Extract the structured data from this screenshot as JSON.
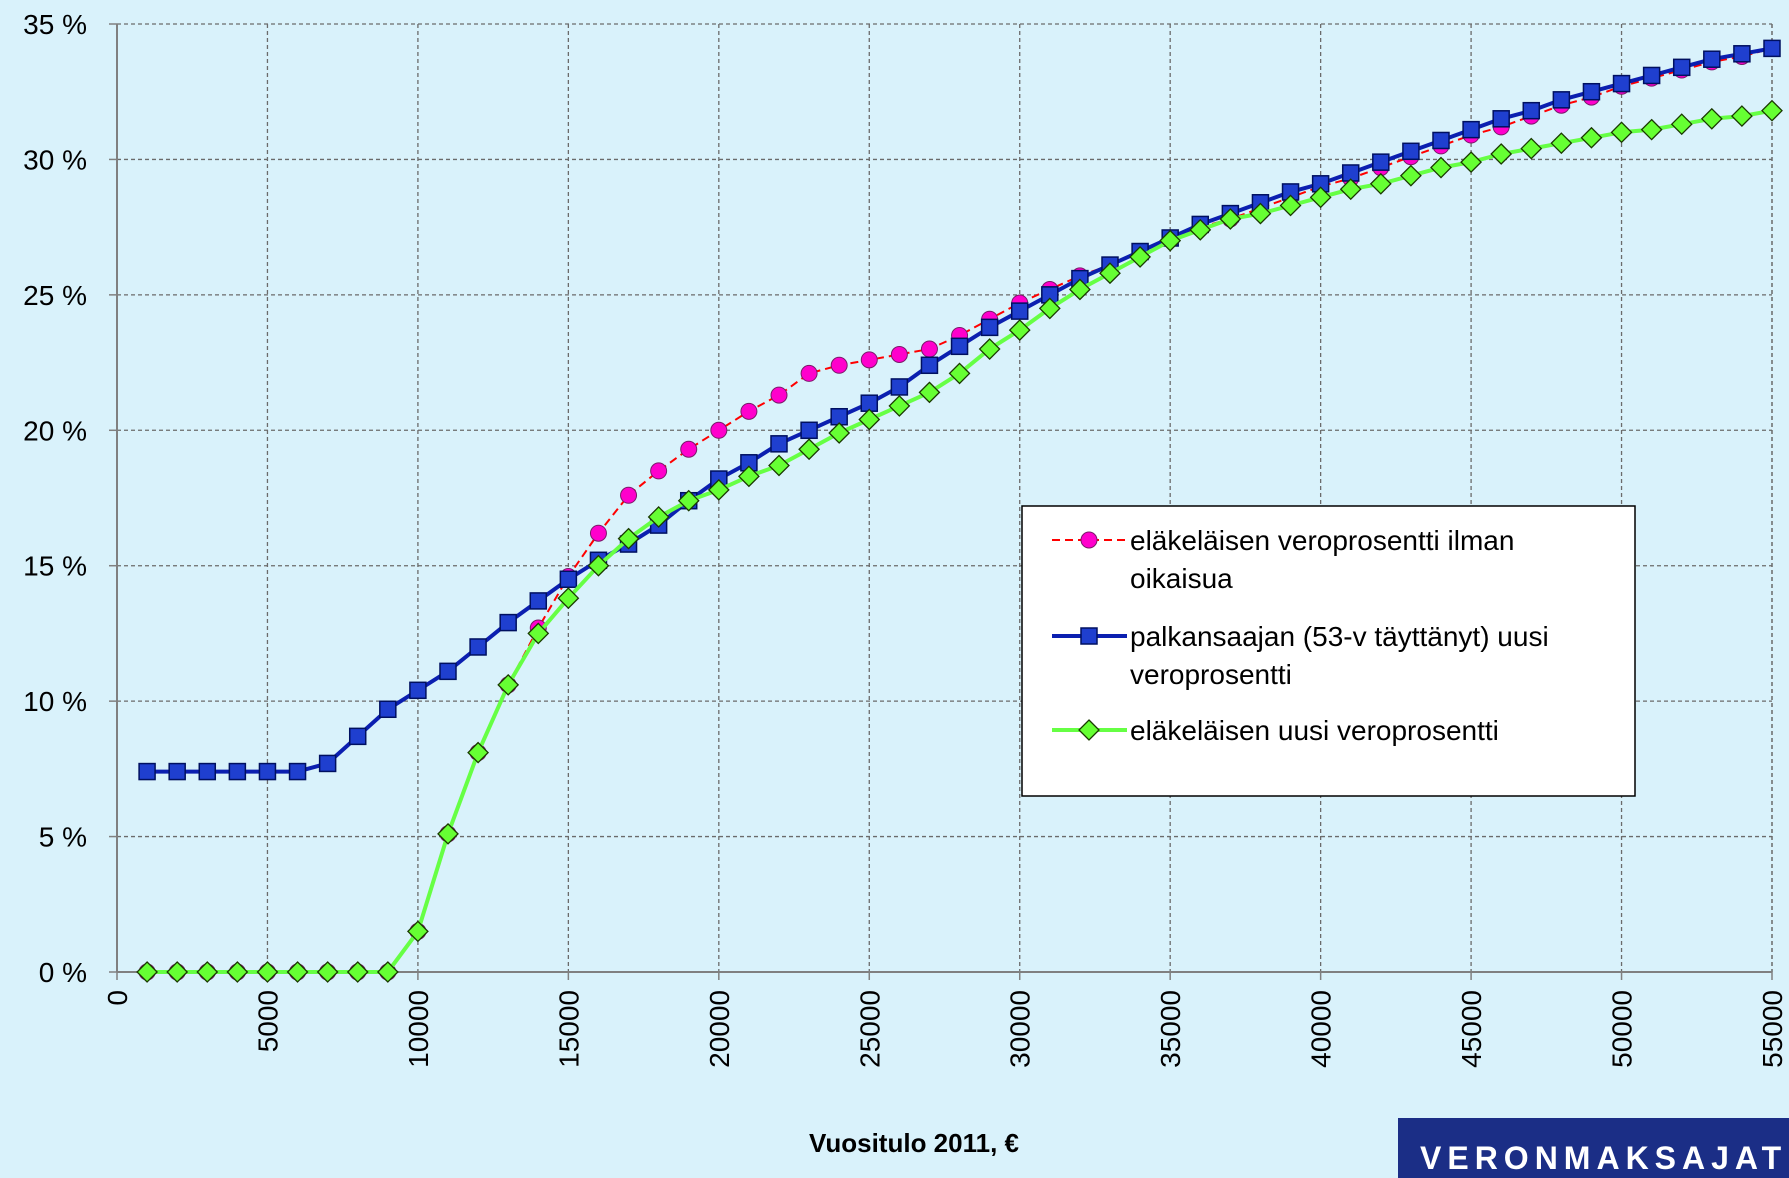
{
  "chart_data": {
    "type": "line",
    "xlabel": "Vuositulo 2011, €",
    "ylabel": "",
    "x_ticks": [
      "0",
      "5000",
      "10000",
      "15000",
      "20000",
      "25000",
      "30000",
      "35000",
      "40000",
      "45000",
      "50000",
      "55000"
    ],
    "y_ticks": [
      "0 %",
      "5 %",
      "10 %",
      "15 %",
      "20 %",
      "25 %",
      "30 %",
      "35 %"
    ],
    "xlim": [
      0,
      55000
    ],
    "ylim": [
      0,
      35
    ],
    "grid": true,
    "legend_position": "right-middle",
    "x": [
      1000,
      2000,
      3000,
      4000,
      5000,
      6000,
      7000,
      8000,
      9000,
      10000,
      11000,
      12000,
      13000,
      14000,
      15000,
      16000,
      17000,
      18000,
      19000,
      20000,
      21000,
      22000,
      23000,
      24000,
      25000,
      26000,
      27000,
      28000,
      29000,
      30000,
      31000,
      32000,
      33000,
      34000,
      35000,
      36000,
      37000,
      38000,
      39000,
      40000,
      41000,
      42000,
      43000,
      44000,
      45000,
      46000,
      47000,
      48000,
      49000,
      50000,
      51000,
      52000,
      53000,
      54000,
      55000
    ],
    "series": [
      {
        "name": "eläkeläisen veroprosentti ilman oikaisua",
        "color": "#ff00cc",
        "line_color": "#ff0000",
        "marker": "circle",
        "dashed": true,
        "values": [
          0,
          0,
          0,
          0,
          0,
          0,
          0,
          0,
          0,
          1.5,
          5.1,
          8.1,
          10.6,
          12.7,
          14.6,
          16.2,
          17.6,
          18.5,
          19.3,
          20.0,
          20.7,
          21.3,
          22.1,
          22.4,
          22.6,
          22.8,
          23.0,
          23.5,
          24.1,
          24.7,
          25.2,
          25.7,
          26.1,
          26.6,
          27.1,
          27.5,
          27.8,
          28.2,
          28.6,
          29.0,
          29.3,
          29.7,
          30.1,
          30.5,
          30.9,
          31.2,
          31.6,
          32.0,
          32.3,
          32.7,
          33.0,
          33.3,
          33.6,
          33.8,
          34.1
        ]
      },
      {
        "name": "palkansaajan (53-v täyttänyt) uusi veroprosentti",
        "color": "#1f3fcf",
        "line_color": "#0b1fb0",
        "marker": "square",
        "dashed": false,
        "values": [
          7.4,
          7.4,
          7.4,
          7.4,
          7.4,
          7.4,
          7.7,
          8.7,
          9.7,
          10.4,
          11.1,
          12.0,
          12.9,
          13.7,
          14.5,
          15.2,
          15.8,
          16.5,
          17.4,
          18.2,
          18.8,
          19.5,
          20.0,
          20.5,
          21.0,
          21.6,
          22.4,
          23.1,
          23.8,
          24.4,
          25.0,
          25.6,
          26.1,
          26.6,
          27.1,
          27.6,
          28.0,
          28.4,
          28.8,
          29.1,
          29.5,
          29.9,
          30.3,
          30.7,
          31.1,
          31.5,
          31.8,
          32.2,
          32.5,
          32.8,
          33.1,
          33.4,
          33.7,
          33.9,
          34.1
        ]
      },
      {
        "name": "eläkeläisen uusi veroprosentti",
        "color": "#66ff33",
        "line_color": "#66ff44",
        "marker": "diamond",
        "dashed": false,
        "values": [
          0,
          0,
          0,
          0,
          0,
          0,
          0,
          0,
          0,
          1.5,
          5.1,
          8.1,
          10.6,
          12.5,
          13.8,
          15.0,
          16.0,
          16.8,
          17.4,
          17.8,
          18.3,
          18.7,
          19.3,
          19.9,
          20.4,
          20.9,
          21.4,
          22.1,
          23.0,
          23.7,
          24.5,
          25.2,
          25.8,
          26.4,
          27.0,
          27.4,
          27.8,
          28.0,
          28.3,
          28.6,
          28.9,
          29.1,
          29.4,
          29.7,
          29.9,
          30.2,
          30.4,
          30.6,
          30.8,
          31.0,
          31.1,
          31.3,
          31.5,
          31.6,
          31.8
        ]
      }
    ]
  },
  "brand": {
    "logo_text": "VERONMAKSAJAT"
  }
}
